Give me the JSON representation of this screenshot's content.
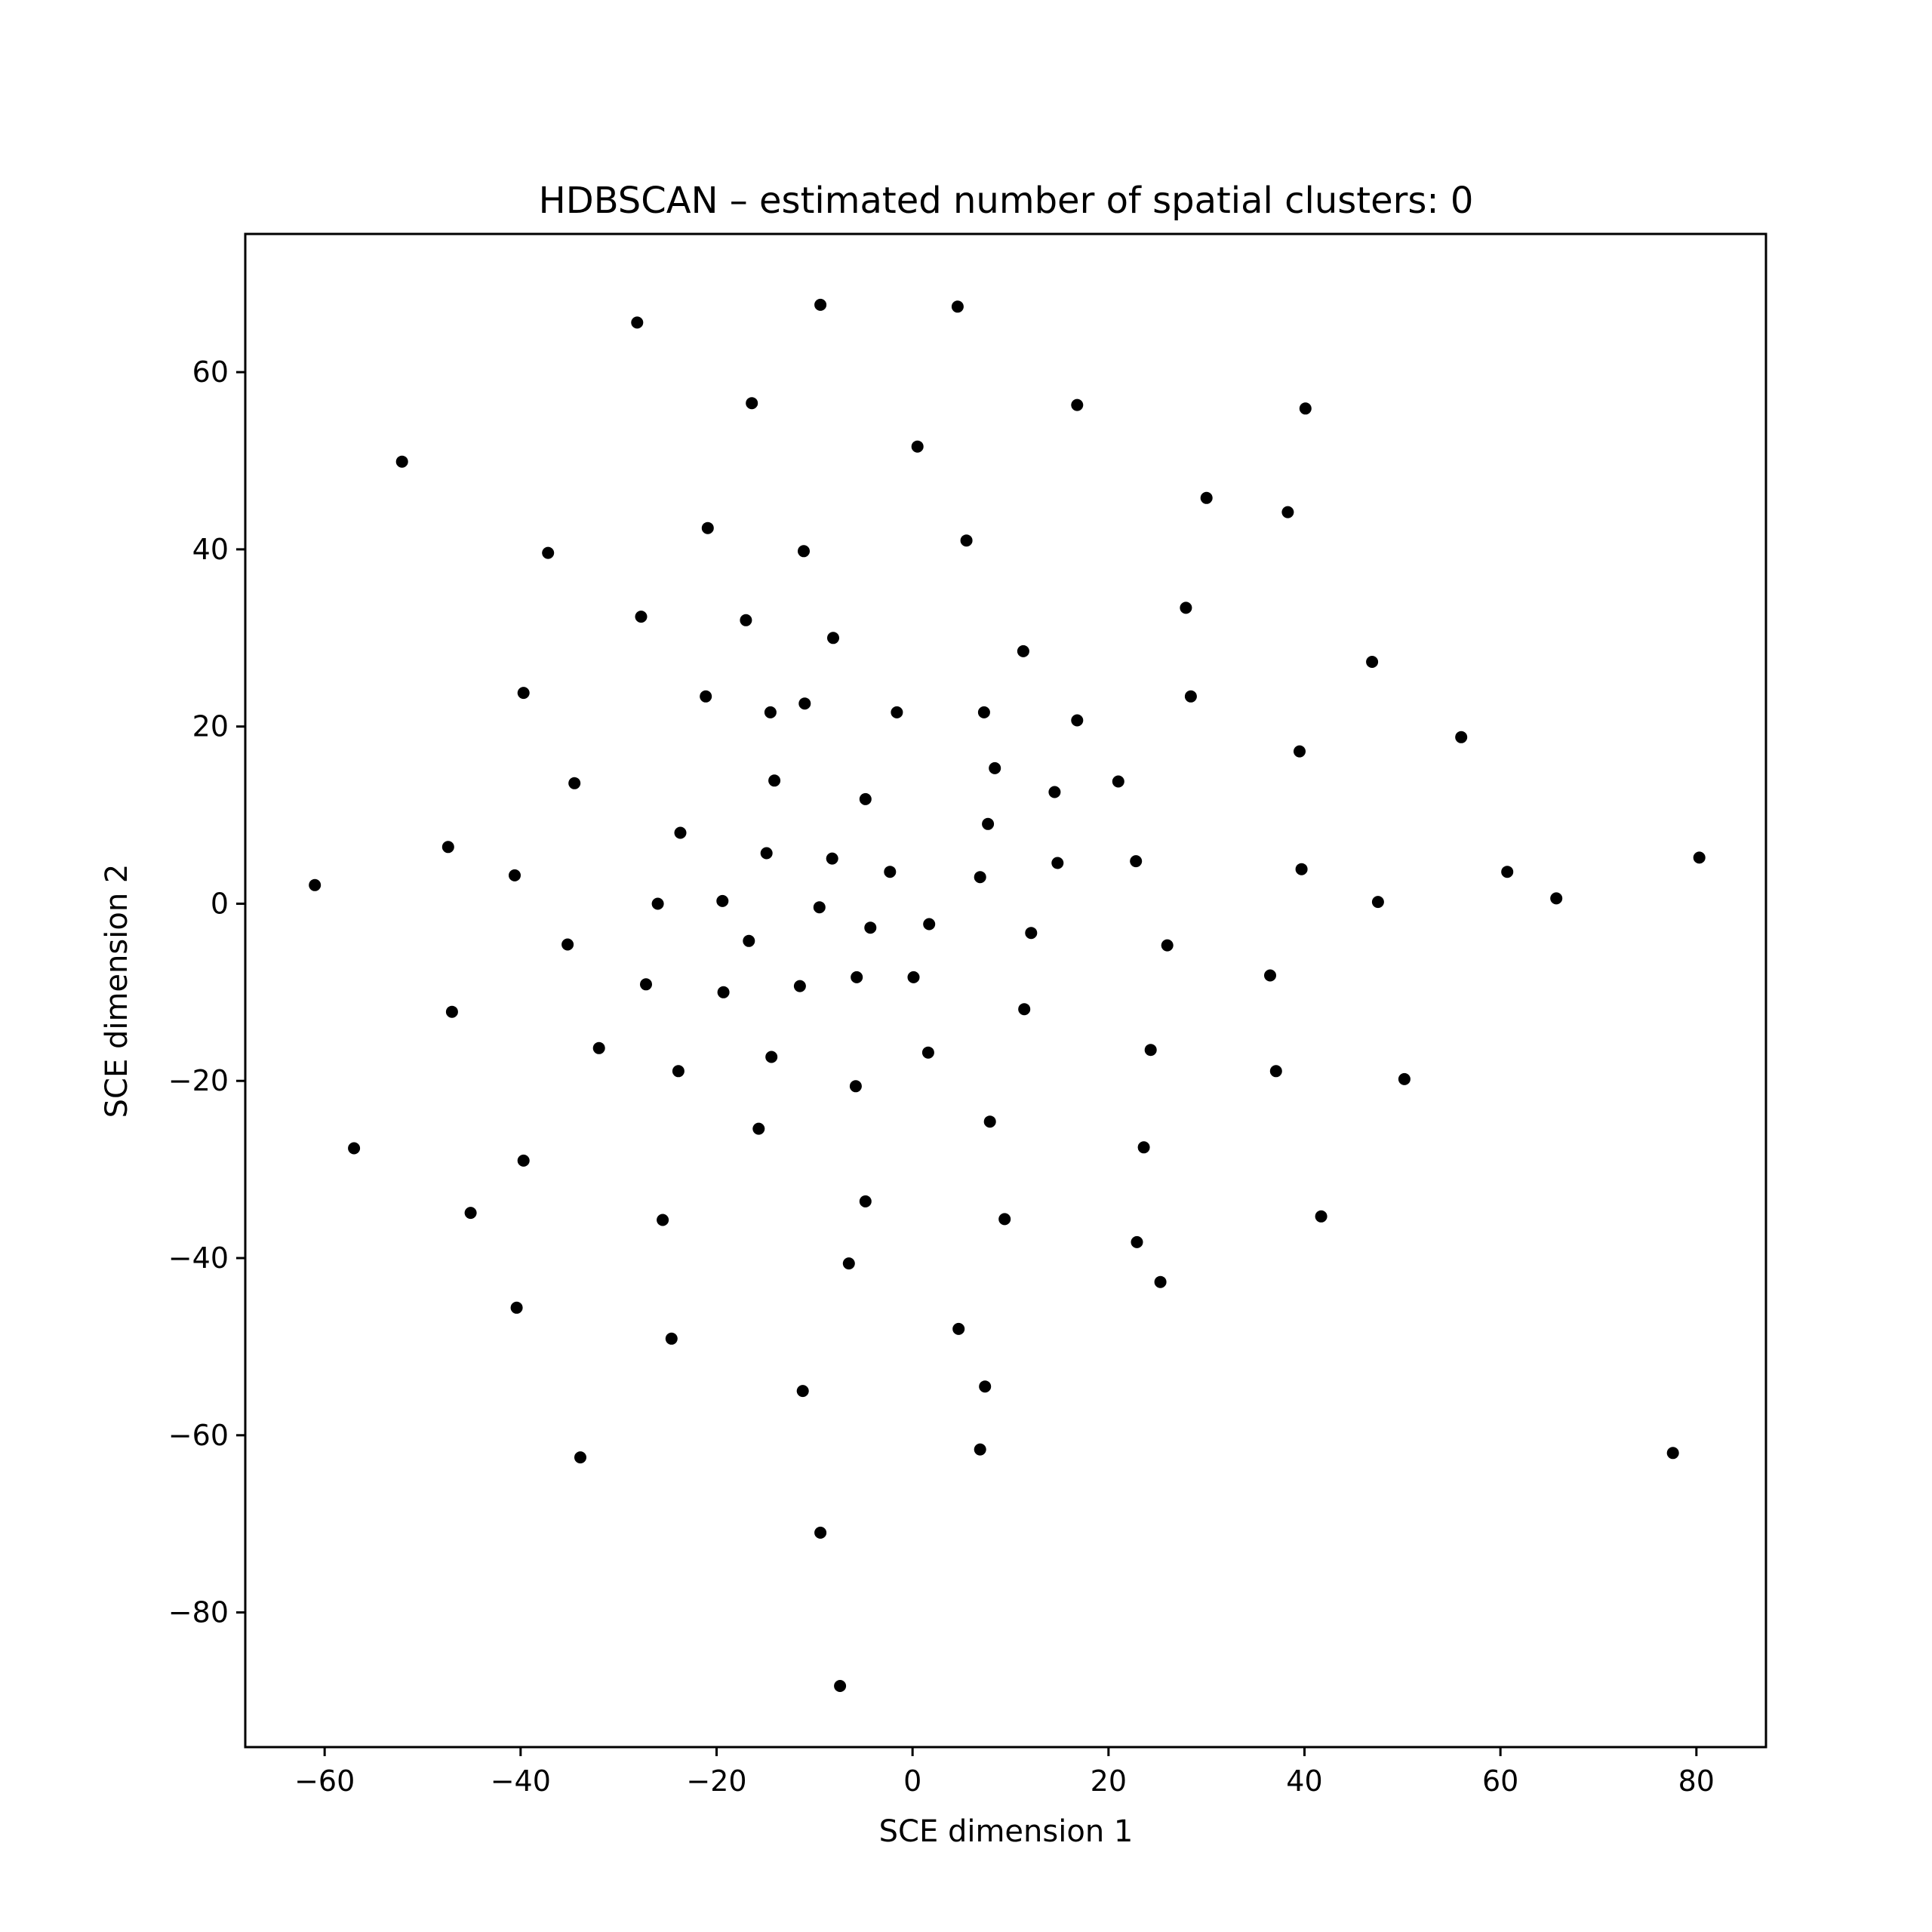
{
  "chart_data": {
    "type": "scatter",
    "title": "HDBSCAN – estimated number of spatial clusters: 0",
    "xlabel": "SCE dimension 1",
    "ylabel": "SCE dimension 2",
    "xlim": [
      -68.1,
      87.1
    ],
    "ylim": [
      -95.2,
      75.6
    ],
    "xticks": [
      -60,
      -40,
      -20,
      0,
      20,
      40,
      60,
      80
    ],
    "xtick_labels": [
      "−60",
      "−40",
      "−20",
      "0",
      "20",
      "40",
      "60",
      "80"
    ],
    "yticks": [
      60,
      40,
      20,
      0,
      -20,
      -40,
      -60,
      -80
    ],
    "ytick_labels": [
      "60",
      "40",
      "20",
      "0",
      "−20",
      "−40",
      "−60",
      "−80"
    ],
    "grid": false,
    "marker_color": "#000000",
    "points": [
      {
        "x": -61.0,
        "y": 2.1
      },
      {
        "x": -57.0,
        "y": -27.6
      },
      {
        "x": -52.1,
        "y": 49.9
      },
      {
        "x": -47.4,
        "y": 6.4
      },
      {
        "x": -47.0,
        "y": -12.2
      },
      {
        "x": -45.1,
        "y": -34.9
      },
      {
        "x": -40.6,
        "y": 3.2
      },
      {
        "x": -40.4,
        "y": -45.6
      },
      {
        "x": -39.7,
        "y": 23.8
      },
      {
        "x": -39.7,
        "y": -29.0
      },
      {
        "x": -37.2,
        "y": 39.6
      },
      {
        "x": -34.5,
        "y": 13.6
      },
      {
        "x": -35.2,
        "y": -4.6
      },
      {
        "x": -33.9,
        "y": -62.5
      },
      {
        "x": -32.0,
        "y": -16.3
      },
      {
        "x": -28.1,
        "y": 65.6
      },
      {
        "x": -27.7,
        "y": 32.4
      },
      {
        "x": -27.2,
        "y": -9.1
      },
      {
        "x": -26.0,
        "y": 0.0
      },
      {
        "x": -25.5,
        "y": -35.7
      },
      {
        "x": -24.6,
        "y": -49.1
      },
      {
        "x": -23.7,
        "y": 8.0
      },
      {
        "x": -23.9,
        "y": -18.9
      },
      {
        "x": -20.9,
        "y": 42.4
      },
      {
        "x": -21.1,
        "y": 23.4
      },
      {
        "x": -19.4,
        "y": 0.3
      },
      {
        "x": -19.3,
        "y": -10.0
      },
      {
        "x": -17.0,
        "y": 32.0
      },
      {
        "x": -16.4,
        "y": 56.5
      },
      {
        "x": -16.7,
        "y": -4.2
      },
      {
        "x": -15.7,
        "y": -25.4
      },
      {
        "x": -14.9,
        "y": 5.7
      },
      {
        "x": -14.5,
        "y": 21.6
      },
      {
        "x": -14.4,
        "y": -17.3
      },
      {
        "x": -14.1,
        "y": 13.9
      },
      {
        "x": -11.1,
        "y": 39.8
      },
      {
        "x": -11.0,
        "y": 22.6
      },
      {
        "x": -11.5,
        "y": -9.3
      },
      {
        "x": -11.2,
        "y": -55.0
      },
      {
        "x": -9.4,
        "y": 67.6
      },
      {
        "x": -9.5,
        "y": -0.4
      },
      {
        "x": -9.4,
        "y": -71.0
      },
      {
        "x": -8.1,
        "y": 30.0
      },
      {
        "x": -8.2,
        "y": 5.1
      },
      {
        "x": -7.4,
        "y": -88.3
      },
      {
        "x": -6.5,
        "y": -40.6
      },
      {
        "x": -5.7,
        "y": -8.3
      },
      {
        "x": -5.8,
        "y": -20.6
      },
      {
        "x": -4.8,
        "y": 11.8
      },
      {
        "x": -4.8,
        "y": -33.6
      },
      {
        "x": -4.3,
        "y": -2.7
      },
      {
        "x": -2.3,
        "y": 3.6
      },
      {
        "x": -1.6,
        "y": 21.6
      },
      {
        "x": 0.1,
        "y": -8.3
      },
      {
        "x": 0.5,
        "y": 51.6
      },
      {
        "x": 1.7,
        "y": -2.3
      },
      {
        "x": 1.6,
        "y": -16.8
      },
      {
        "x": 4.6,
        "y": 67.4
      },
      {
        "x": 4.7,
        "y": -48.0
      },
      {
        "x": 5.5,
        "y": 41.0
      },
      {
        "x": 6.9,
        "y": 3.0
      },
      {
        "x": 6.9,
        "y": -61.6
      },
      {
        "x": 7.3,
        "y": 21.6
      },
      {
        "x": 7.4,
        "y": -54.5
      },
      {
        "x": 7.7,
        "y": 9.0
      },
      {
        "x": 7.9,
        "y": -24.6
      },
      {
        "x": 8.4,
        "y": 15.3
      },
      {
        "x": 9.4,
        "y": -35.6
      },
      {
        "x": 11.3,
        "y": 28.5
      },
      {
        "x": 11.4,
        "y": -11.9
      },
      {
        "x": 12.1,
        "y": -3.3
      },
      {
        "x": 14.5,
        "y": 12.6
      },
      {
        "x": 14.8,
        "y": 4.6
      },
      {
        "x": 16.8,
        "y": 56.3
      },
      {
        "x": 16.8,
        "y": 20.7
      },
      {
        "x": 21.0,
        "y": 13.8
      },
      {
        "x": 22.8,
        "y": 4.8
      },
      {
        "x": 22.9,
        "y": -38.2
      },
      {
        "x": 23.6,
        "y": -27.5
      },
      {
        "x": 24.3,
        "y": -16.5
      },
      {
        "x": 25.3,
        "y": -42.7
      },
      {
        "x": 26.0,
        "y": -4.7
      },
      {
        "x": 27.9,
        "y": 33.4
      },
      {
        "x": 28.4,
        "y": 23.4
      },
      {
        "x": 30.0,
        "y": 45.8
      },
      {
        "x": 36.5,
        "y": -8.1
      },
      {
        "x": 37.1,
        "y": -18.9
      },
      {
        "x": 38.3,
        "y": 44.2
      },
      {
        "x": 39.5,
        "y": 17.2
      },
      {
        "x": 39.7,
        "y": 3.9
      },
      {
        "x": 40.1,
        "y": 55.9
      },
      {
        "x": 41.7,
        "y": -35.3
      },
      {
        "x": 46.9,
        "y": 27.3
      },
      {
        "x": 47.5,
        "y": 0.2
      },
      {
        "x": 50.2,
        "y": -19.8
      },
      {
        "x": 56.0,
        "y": 18.8
      },
      {
        "x": 60.7,
        "y": 3.6
      },
      {
        "x": 65.7,
        "y": 0.6
      },
      {
        "x": 77.6,
        "y": -62.0
      },
      {
        "x": 80.3,
        "y": 5.2
      }
    ]
  }
}
